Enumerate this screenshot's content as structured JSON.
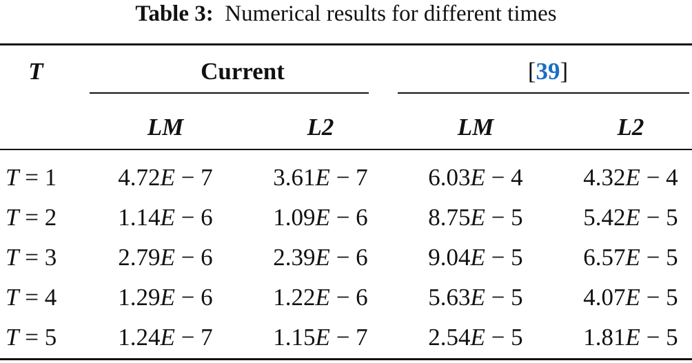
{
  "caption": {
    "label": "Table 3:",
    "text": "Numerical results for different times"
  },
  "table": {
    "corner": "T",
    "groups": [
      {
        "title": "Current"
      },
      {
        "open": "[",
        "ref": "39",
        "close": "]"
      }
    ],
    "subheaders": [
      "LM",
      "L2",
      "LM",
      "L2"
    ],
    "rows": [
      [
        "T = 1",
        "4.72E − 7",
        "3.61E − 7",
        "6.03E − 4",
        "4.32E − 4"
      ],
      [
        "T = 2",
        "1.14E − 6",
        "1.09E − 6",
        "8.75E − 5",
        "5.42E − 5"
      ],
      [
        "T = 3",
        "2.79E − 6",
        "2.39E − 6",
        "9.04E − 5",
        "6.57E − 5"
      ],
      [
        "T = 4",
        "1.29E − 6",
        "1.22E − 6",
        "5.63E − 5",
        "4.07E − 5"
      ],
      [
        "T = 5",
        "1.24E − 7",
        "1.15E − 7",
        "2.54E − 5",
        "1.81E − 5"
      ]
    ]
  }
}
